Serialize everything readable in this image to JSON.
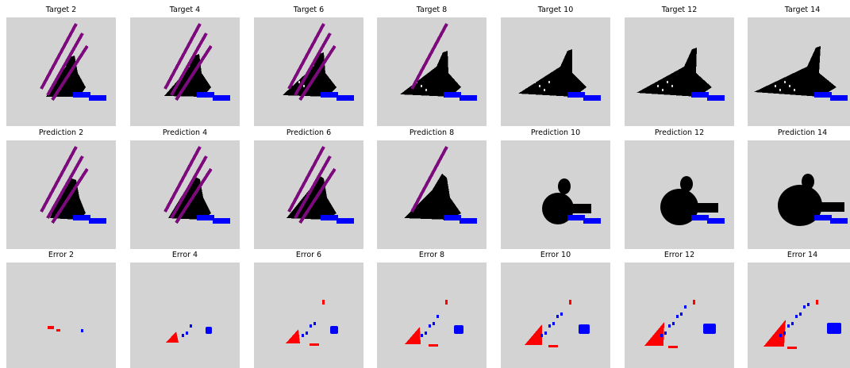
{
  "rows": [
    {
      "titles": [
        "Target 2",
        "Target 4",
        "Target 6",
        "Target 8",
        "Target 10",
        "Target 12",
        "Target 14"
      ]
    },
    {
      "titles": [
        "Prediction 2",
        "Prediction 4",
        "Prediction 6",
        "Prediction 8",
        "Prediction 10",
        "Prediction 12",
        "Prediction 14"
      ]
    },
    {
      "titles": [
        "Error 2",
        "Error 4",
        "Error 6",
        "Error 8",
        "Error 10",
        "Error 12",
        "Error 14"
      ]
    }
  ]
}
